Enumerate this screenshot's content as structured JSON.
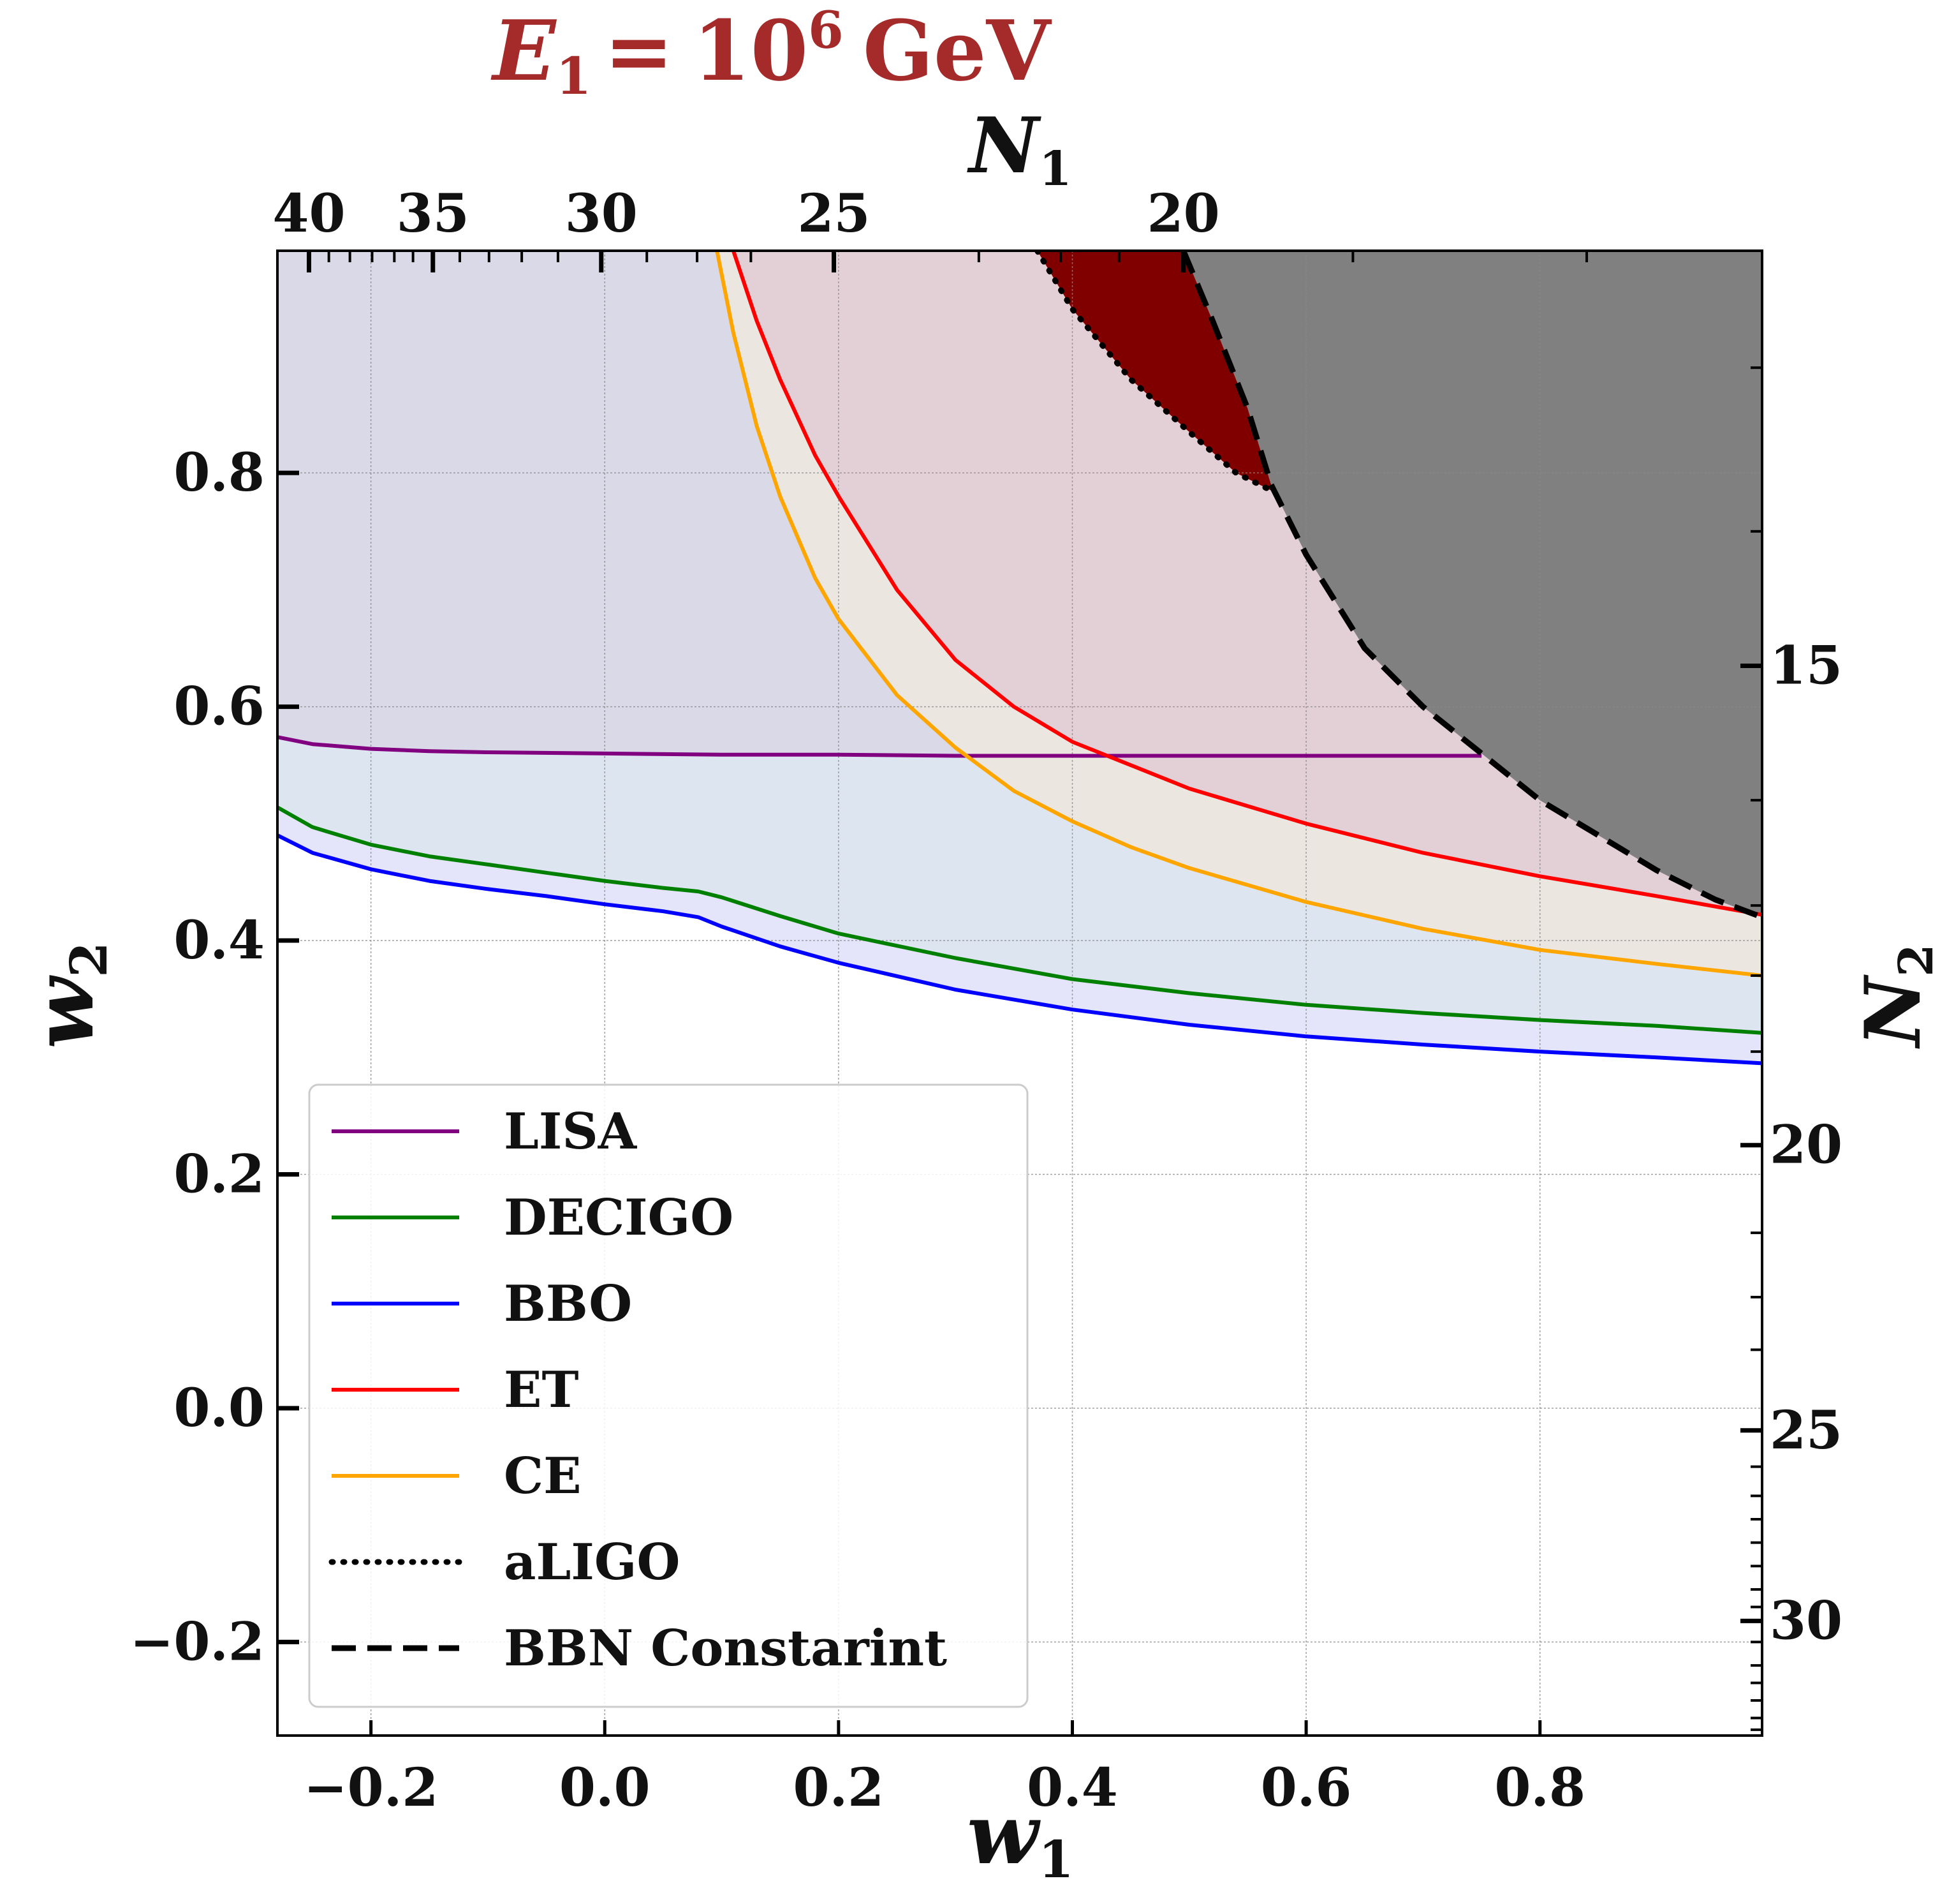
{
  "chart_data": {
    "type": "line",
    "title": {
      "symbol": "E",
      "subscript": "1",
      "equals": "=",
      "base": "10",
      "exponent": "6",
      "unit": "GeV",
      "color": "#a52a2a"
    },
    "xlabel": {
      "symbol": "w",
      "subscript": "1"
    },
    "ylabel": {
      "symbol": "w",
      "subscript": "2"
    },
    "top_label": {
      "symbol": "N",
      "subscript": "1"
    },
    "right_label": {
      "symbol": "N",
      "subscript": "2"
    },
    "xlim": [
      -0.28,
      0.99
    ],
    "ylim": [
      -0.28,
      0.99
    ],
    "x_ticks": [
      -0.2,
      0.0,
      0.2,
      0.4,
      0.6,
      0.8
    ],
    "x_tick_labels": [
      "−0.2",
      "0.0",
      "0.2",
      "0.4",
      "0.6",
      "0.8"
    ],
    "y_ticks": [
      -0.2,
      0.0,
      0.2,
      0.4,
      0.6,
      0.8
    ],
    "y_tick_labels": [
      "−0.2",
      "0.0",
      "0.2",
      "0.4",
      "0.6",
      "0.8"
    ],
    "top_ticks": [
      {
        "label": "40",
        "w1": -0.253
      },
      {
        "label": "35",
        "w1": -0.147
      },
      {
        "label": "30",
        "w1": -0.003
      },
      {
        "label": "25",
        "w1": 0.196
      },
      {
        "label": "20",
        "w1": 0.495
      }
    ],
    "top_minor_ticks": [
      -0.236,
      -0.218,
      -0.199,
      -0.18,
      -0.164,
      -0.124,
      -0.099,
      -0.071,
      -0.04,
      0.036,
      0.079,
      0.125,
      0.32,
      0.39,
      0.44,
      0.64,
      0.84,
      0.99
    ],
    "right_ticks": [
      {
        "label": "15",
        "w2": 0.635
      },
      {
        "label": "20",
        "w2": 0.225
      },
      {
        "label": "25",
        "w2": -0.019
      },
      {
        "label": "30",
        "w2": -0.182
      }
    ],
    "right_minor_ticks": [
      0.89,
      0.75,
      0.52,
      0.43,
      0.37,
      0.305,
      0.15,
      0.095,
      0.05,
      -0.05,
      -0.075,
      -0.095,
      -0.115,
      -0.135,
      -0.155,
      -0.17,
      -0.2,
      -0.22,
      -0.235,
      -0.25,
      -0.265,
      -0.275
    ],
    "legend": {
      "position": "lower-left",
      "entries": [
        {
          "label": "LISA",
          "color": "#800080",
          "style": "solid"
        },
        {
          "label": "DECIGO",
          "color": "#008000",
          "style": "solid"
        },
        {
          "label": "BBO",
          "color": "#0000ff",
          "style": "solid"
        },
        {
          "label": "ET",
          "color": "#ff0000",
          "style": "solid"
        },
        {
          "label": "CE",
          "color": "#ffa500",
          "style": "solid"
        },
        {
          "label": "aLIGO",
          "color": "#000000",
          "style": "dotted"
        },
        {
          "label": "BBN Constarint",
          "color": "#000000",
          "style": "dashed"
        }
      ]
    },
    "series": [
      {
        "name": "LISA",
        "color": "#800080",
        "x": [
          -0.28,
          -0.25,
          -0.2,
          -0.15,
          -0.1,
          0.0,
          0.1,
          0.2,
          0.3,
          0.4,
          0.5,
          0.6,
          0.7,
          0.75
        ],
        "y": [
          0.574,
          0.568,
          0.564,
          0.562,
          0.561,
          0.56,
          0.559,
          0.559,
          0.558,
          0.558,
          0.558,
          0.558,
          0.558,
          0.558
        ]
      },
      {
        "name": "DECIGO",
        "color": "#008000",
        "x": [
          -0.28,
          -0.25,
          -0.2,
          -0.15,
          -0.1,
          -0.05,
          0.0,
          0.05,
          0.08,
          0.1,
          0.15,
          0.2,
          0.3,
          0.4,
          0.5,
          0.6,
          0.7,
          0.8,
          0.9,
          0.99
        ],
        "y": [
          0.514,
          0.497,
          0.482,
          0.472,
          0.465,
          0.458,
          0.451,
          0.445,
          0.442,
          0.437,
          0.421,
          0.406,
          0.385,
          0.367,
          0.355,
          0.345,
          0.338,
          0.332,
          0.327,
          0.321
        ]
      },
      {
        "name": "BBO",
        "color": "#0000ff",
        "x": [
          -0.28,
          -0.25,
          -0.2,
          -0.15,
          -0.1,
          -0.05,
          0.0,
          0.05,
          0.08,
          0.1,
          0.15,
          0.2,
          0.3,
          0.4,
          0.5,
          0.6,
          0.7,
          0.8,
          0.9,
          0.99
        ],
        "y": [
          0.49,
          0.475,
          0.461,
          0.451,
          0.444,
          0.438,
          0.431,
          0.425,
          0.42,
          0.412,
          0.395,
          0.381,
          0.358,
          0.341,
          0.328,
          0.318,
          0.311,
          0.305,
          0.3,
          0.295
        ]
      },
      {
        "name": "ET",
        "color": "#ff0000",
        "x": [
          0.11,
          0.13,
          0.15,
          0.18,
          0.2,
          0.25,
          0.3,
          0.35,
          0.4,
          0.45,
          0.5,
          0.6,
          0.7,
          0.8,
          0.9,
          0.99
        ],
        "y": [
          0.99,
          0.93,
          0.88,
          0.815,
          0.78,
          0.7,
          0.64,
          0.6,
          0.57,
          0.55,
          0.53,
          0.5,
          0.475,
          0.455,
          0.438,
          0.422
        ]
      },
      {
        "name": "CE",
        "color": "#ffa500",
        "x": [
          0.096,
          0.11,
          0.13,
          0.15,
          0.18,
          0.2,
          0.25,
          0.3,
          0.35,
          0.4,
          0.45,
          0.5,
          0.6,
          0.7,
          0.8,
          0.9,
          0.99
        ],
        "y": [
          0.99,
          0.92,
          0.84,
          0.78,
          0.71,
          0.675,
          0.61,
          0.565,
          0.528,
          0.502,
          0.48,
          0.462,
          0.433,
          0.41,
          0.392,
          0.38,
          0.37
        ]
      },
      {
        "name": "aLIGO",
        "color": "#000000",
        "style": "dotted",
        "x": [
          0.37,
          0.4,
          0.45,
          0.5,
          0.54,
          0.57
        ],
        "y": [
          0.99,
          0.94,
          0.88,
          0.835,
          0.8,
          0.785
        ]
      },
      {
        "name": "BBN Constarint",
        "color": "#000000",
        "style": "dashed",
        "x": [
          0.495,
          0.52,
          0.55,
          0.57,
          0.6,
          0.65,
          0.7,
          0.75,
          0.8,
          0.85,
          0.9,
          0.95,
          0.99
        ],
        "y": [
          0.99,
          0.93,
          0.855,
          0.79,
          0.73,
          0.65,
          0.6,
          0.56,
          0.52,
          0.49,
          0.46,
          0.435,
          0.42
        ]
      }
    ],
    "regions": [
      {
        "name": "LISA-region",
        "color": "#d9d9e8"
      },
      {
        "name": "DECIGO-region",
        "color": "#dde6f0"
      },
      {
        "name": "BBO-region",
        "color": "#e4e4fb"
      },
      {
        "name": "ET-region",
        "color": "#e3cfd6"
      },
      {
        "name": "CE-region",
        "color": "#ebe6e0"
      },
      {
        "name": "aLIGO-region",
        "color": "#800000"
      },
      {
        "name": "BBN-excluded-region",
        "color": "#808080"
      }
    ]
  }
}
